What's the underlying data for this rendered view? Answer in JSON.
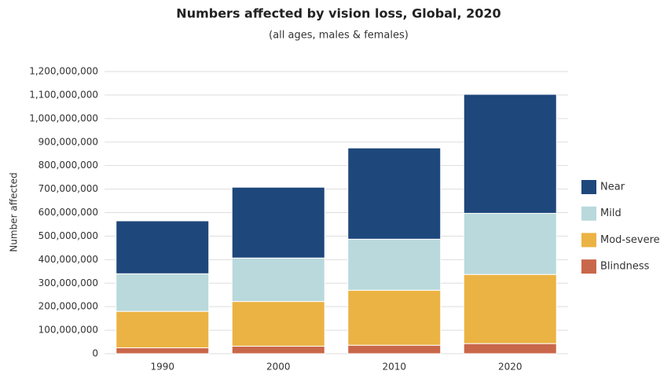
{
  "chart_data": {
    "type": "stacked-bar",
    "title": "Numbers affected by vision loss, Global, 2020",
    "subtitle": "(all ages, males & females)",
    "y_label": "Number affected",
    "categories": [
      "1990",
      "2000",
      "2010",
      "2020"
    ],
    "series": [
      {
        "name": "Blindness",
        "color": "#c9674a",
        "values": [
          25000000,
          32000000,
          36000000,
          43000000
        ]
      },
      {
        "name": "Mod-severe",
        "color": "#ebb343",
        "values": [
          155000000,
          190000000,
          234000000,
          294000000
        ]
      },
      {
        "name": "Mild",
        "color": "#b9d9dc",
        "values": [
          160000000,
          185000000,
          217000000,
          260000000
        ]
      },
      {
        "name": "Near",
        "color": "#1e477b",
        "values": [
          225000000,
          301000000,
          388000000,
          506000000
        ]
      }
    ],
    "ylim": [
      0,
      1200000000
    ],
    "yticks": [
      0,
      {
        "value": 100000000,
        "label": "100,000,000"
      },
      {
        "value": 200000000,
        "label": "200,000,000"
      },
      {
        "value": 300000000,
        "label": "300,000,000"
      },
      {
        "value": 400000000,
        "label": "400,000,000"
      },
      {
        "value": 500000000,
        "label": "500,000,000"
      },
      {
        "value": 600000000,
        "label": "600,000,000"
      },
      {
        "value": 700000000,
        "label": "700,000,000"
      },
      {
        "value": 800000000,
        "label": "800,000,000"
      },
      {
        "value": 900000000,
        "label": "900,000,000"
      },
      {
        "value": 1000000000,
        "label": "1,000,000,000"
      },
      {
        "value": 1100000000,
        "label": "1,100,000,000"
      },
      {
        "value": 1200000000,
        "label": "1,200,000,000"
      }
    ],
    "grid": true,
    "legend": "right"
  }
}
